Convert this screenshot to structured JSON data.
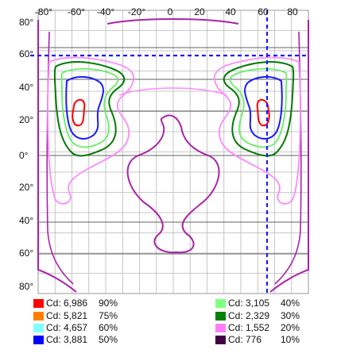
{
  "chart_data": {
    "type": "contour",
    "x_ticks": [
      "-80°",
      "-60°",
      "-40°",
      "-20°",
      "0",
      "20",
      "40",
      "60",
      "80"
    ],
    "y_ticks": [
      "80°",
      "60°",
      "40°",
      "20°",
      "0°",
      "20°",
      "40°",
      "60°",
      "80°"
    ],
    "grid": true,
    "markers": {
      "vertical_dashed_at": 65,
      "horizontal_dashed_at": 60,
      "color": "#1a1aff"
    },
    "levels": [
      {
        "cd": "Cd: 6,986",
        "pct": "90%",
        "color": "#ff0000"
      },
      {
        "cd": "Cd: 5,821",
        "pct": "75%",
        "color": "#ff7f00"
      },
      {
        "cd": "Cd: 4,657",
        "pct": "60%",
        "color": "#80ffff"
      },
      {
        "cd": "Cd: 3,881",
        "pct": "50%",
        "color": "#0000ff"
      },
      {
        "cd": "Cd: 3,105",
        "pct": "40%",
        "color": "#80ff80"
      },
      {
        "cd": "Cd: 2,329",
        "pct": "30%",
        "color": "#008000"
      },
      {
        "cd": "Cd: 1,552",
        "pct": "20%",
        "color": "#ff80ff"
      },
      {
        "cd": "Cd: 776",
        "pct": "10%",
        "color": "#400040"
      }
    ],
    "contour_colors": {
      "l90": "#ff0000",
      "l50": "#1a1aff",
      "l40": "#66ee66",
      "l30": "#007a00",
      "l20": "#ff88ff",
      "l10": "#aa22aa"
    }
  }
}
